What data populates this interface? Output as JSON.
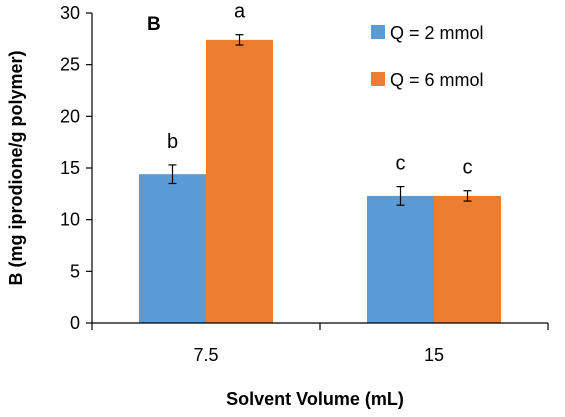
{
  "chart_data": {
    "type": "bar",
    "panel_label": "B",
    "categories": [
      "7.5",
      "15"
    ],
    "series": [
      {
        "name": "Q = 2 mmol",
        "color": "#5b9bd5",
        "values": [
          14.4,
          12.3
        ],
        "errors": [
          0.9,
          0.9
        ],
        "labels": [
          "b",
          "c"
        ]
      },
      {
        "name": "Q = 6 mmol",
        "color": "#ed7d31",
        "values": [
          27.4,
          12.3
        ],
        "errors": [
          0.5,
          0.5
        ],
        "labels": [
          "a",
          "c"
        ]
      }
    ],
    "xlabel": "Solvent Volume (mL)",
    "ylabel": "B (mg iprodione/g polymer)",
    "ylim": [
      0,
      30
    ],
    "yticks": [
      0,
      5,
      10,
      15,
      20,
      25,
      30
    ],
    "grid": false,
    "legend_position": "top-right"
  }
}
